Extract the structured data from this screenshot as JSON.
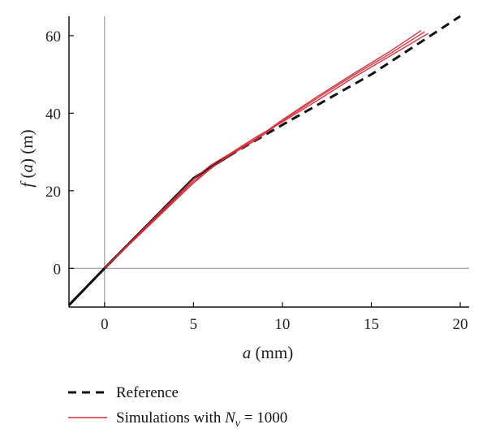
{
  "chart_data": {
    "type": "line",
    "xlabel": {
      "var": "a",
      "unit": " (mm)"
    },
    "ylabel": {
      "func": "f",
      "paren_open": " (",
      "var": "a",
      "paren_close": ")",
      "unit": " (m)"
    },
    "xlim": [
      -2,
      20.5
    ],
    "ylim": [
      -10,
      65
    ],
    "xticks": [
      0,
      5,
      10,
      15,
      20
    ],
    "yticks": [
      0,
      20,
      40,
      60
    ],
    "xtick_labels": [
      "0",
      "5",
      "10",
      "15",
      "20"
    ],
    "ytick_labels": [
      "0",
      "20",
      "40",
      "60"
    ],
    "zero_lines": true,
    "grid": false,
    "legend_placement": "bottom-left, below plot",
    "series": [
      {
        "name": "Reference",
        "style": "dashed",
        "color": "#111111",
        "x": [
          -2,
          0,
          5,
          7,
          10,
          15,
          20
        ],
        "y": [
          -9.5,
          0,
          23.2,
          29,
          37,
          50,
          65
        ]
      },
      {
        "name": "Simulations with N_v = 1000",
        "style": "solid",
        "color": "#d62d3a",
        "runs": [
          {
            "x": [
              0,
              2.5,
              5,
              6,
              7,
              8.5,
              10,
              12,
              14,
              16,
              18
            ],
            "y": [
              0,
              11.2,
              22.4,
              26,
              29,
              33,
              38,
              44,
              49.8,
              55.2,
              61
            ]
          },
          {
            "x": [
              0,
              2.5,
              5,
              6,
              7,
              8.5,
              10,
              12,
              14,
              16,
              18.2
            ],
            "y": [
              0,
              11.6,
              23,
              26.7,
              29.4,
              33.8,
              37.7,
              43.4,
              49.2,
              54.6,
              60.6
            ]
          },
          {
            "x": [
              0,
              2.5,
              5,
              6,
              7,
              8.5,
              10,
              12,
              14,
              16,
              17.8
            ],
            "y": [
              0,
              11,
              22,
              25.8,
              29.2,
              33.4,
              38.3,
              44.4,
              50.2,
              55.8,
              61.3
            ]
          }
        ]
      }
    ]
  },
  "legend": {
    "reference_label": "Reference",
    "sim_prefix": "Simulations with ",
    "sim_var": "N",
    "sim_sub": "ν",
    "sim_suffix": " = 1000"
  }
}
